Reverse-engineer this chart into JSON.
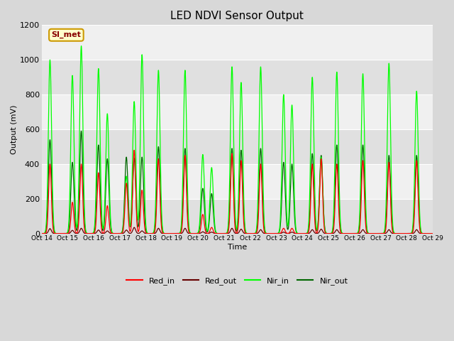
{
  "title": "LED NDVI Sensor Output",
  "xlabel": "Time",
  "ylabel": "Output (mV)",
  "ylim": [
    0,
    1200
  ],
  "bg_color": "#d8d8d8",
  "plot_bg_color": "#ececec",
  "annotation_box": {
    "text": "SI_met",
    "facecolor": "#ffffcc",
    "edgecolor": "#cc9900",
    "textcolor": "#880000",
    "fontsize": 8
  },
  "series": {
    "Red_in": {
      "color": "#ff0000",
      "linewidth": 0.9
    },
    "Red_out": {
      "color": "#660000",
      "linewidth": 0.9
    },
    "Nir_in": {
      "color": "#00ff00",
      "linewidth": 0.9
    },
    "Nir_out": {
      "color": "#006600",
      "linewidth": 0.9
    }
  },
  "legend": {
    "Red_in": {
      "color": "#ff0000"
    },
    "Red_out": {
      "color": "#660000"
    },
    "Nir_in": {
      "color": "#00ff00"
    },
    "Nir_out": {
      "color": "#006600"
    }
  },
  "xtick_labels": [
    "Oct 14",
    "Oct 15",
    "Oct 16",
    "Oct 17",
    "Oct 18",
    "Oct 19",
    "Oct 20",
    "Oct 21",
    "Oct 22",
    "Oct 23",
    "Oct 24",
    "Oct 25",
    "Oct 26",
    "Oct 27",
    "Oct 28",
    "Oct 29"
  ],
  "ytick_labels": [
    0,
    200,
    400,
    600,
    800,
    1000,
    1200
  ],
  "band_colors": [
    "#e0e0e0",
    "#f0f0f0"
  ],
  "peaks_per_day": [
    {
      "day": 14.32,
      "red_in": 400,
      "red_out": 28,
      "nir_in": 1000,
      "nir_out": 540
    },
    {
      "day": 15.18,
      "red_in": 180,
      "red_out": 18,
      "nir_in": 910,
      "nir_out": 410
    },
    {
      "day": 15.52,
      "red_in": 400,
      "red_out": 30,
      "nir_in": 1080,
      "nir_out": 590
    },
    {
      "day": 16.18,
      "red_in": 350,
      "red_out": 20,
      "nir_in": 950,
      "nir_out": 510
    },
    {
      "day": 16.52,
      "red_in": 160,
      "red_out": 15,
      "nir_in": 690,
      "nir_out": 430
    },
    {
      "day": 17.25,
      "red_in": 290,
      "red_out": 20,
      "nir_in": 330,
      "nir_out": 440
    },
    {
      "day": 17.55,
      "red_in": 480,
      "red_out": 35,
      "nir_in": 760,
      "nir_out": 435
    },
    {
      "day": 17.85,
      "red_in": 250,
      "red_out": 15,
      "nir_in": 1030,
      "nir_out": 440
    },
    {
      "day": 18.48,
      "red_in": 430,
      "red_out": 30,
      "nir_in": 940,
      "nir_out": 500
    },
    {
      "day": 19.5,
      "red_in": 450,
      "red_out": 30,
      "nir_in": 940,
      "nir_out": 490
    },
    {
      "day": 20.18,
      "red_in": 110,
      "red_out": 10,
      "nir_in": 455,
      "nir_out": 260
    },
    {
      "day": 20.52,
      "red_in": 35,
      "red_out": 8,
      "nir_in": 380,
      "nir_out": 230
    },
    {
      "day": 21.3,
      "red_in": 460,
      "red_out": 30,
      "nir_in": 960,
      "nir_out": 490
    },
    {
      "day": 21.65,
      "red_in": 420,
      "red_out": 25,
      "nir_in": 870,
      "nir_out": 480
    },
    {
      "day": 22.4,
      "red_in": 400,
      "red_out": 22,
      "nir_in": 960,
      "nir_out": 490
    },
    {
      "day": 23.28,
      "red_in": 30,
      "red_out": 8,
      "nir_in": 800,
      "nir_out": 410
    },
    {
      "day": 23.6,
      "red_in": 30,
      "red_out": 8,
      "nir_in": 740,
      "nir_out": 400
    },
    {
      "day": 24.38,
      "red_in": 400,
      "red_out": 22,
      "nir_in": 900,
      "nir_out": 460
    },
    {
      "day": 24.72,
      "red_in": 430,
      "red_out": 25,
      "nir_in": 440,
      "nir_out": 450
    },
    {
      "day": 25.32,
      "red_in": 400,
      "red_out": 22,
      "nir_in": 930,
      "nir_out": 510
    },
    {
      "day": 26.32,
      "red_in": 420,
      "red_out": 22,
      "nir_in": 920,
      "nir_out": 510
    },
    {
      "day": 27.32,
      "red_in": 410,
      "red_out": 22,
      "nir_in": 980,
      "nir_out": 450
    },
    {
      "day": 28.38,
      "red_in": 420,
      "red_out": 22,
      "nir_in": 820,
      "nir_out": 450
    }
  ]
}
